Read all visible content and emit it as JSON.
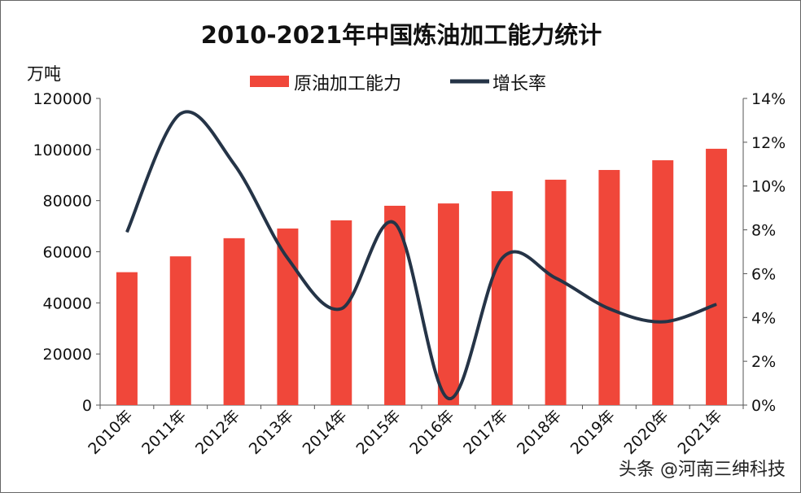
{
  "chart_data": {
    "type": "bar+line",
    "title": "2010-2021年中国炼油加工能力统计",
    "ylabel": "万吨",
    "categories": [
      "2010年",
      "2011年",
      "2012年",
      "2013年",
      "2014年",
      "2015年",
      "2016年",
      "2017年",
      "2018年",
      "2019年",
      "2020年",
      "2021年"
    ],
    "series": [
      {
        "name": "原油加工能力",
        "type": "bar",
        "axis": "left",
        "color": "#F0473A",
        "values": [
          52000,
          58200,
          65300,
          69100,
          72300,
          78000,
          78900,
          83700,
          88200,
          92000,
          95800,
          100300
        ]
      },
      {
        "name": "增长率",
        "type": "line",
        "axis": "right",
        "color": "#253447",
        "values": [
          7.9,
          13.3,
          11.0,
          6.7,
          4.4,
          8.3,
          0.3,
          6.7,
          5.8,
          4.4,
          3.8,
          4.6
        ]
      }
    ],
    "ylim": [
      0,
      120000
    ],
    "yticks": [
      "0",
      "20000",
      "40000",
      "60000",
      "80000",
      "100000",
      "120000"
    ],
    "y2lim": [
      0,
      14
    ],
    "y2ticks": [
      "0%",
      "2%",
      "4%",
      "6%",
      "8%",
      "10%",
      "12%",
      "14%"
    ],
    "grid": false,
    "legend": "top-center"
  },
  "watermark": "头条 @河南三绅科技"
}
